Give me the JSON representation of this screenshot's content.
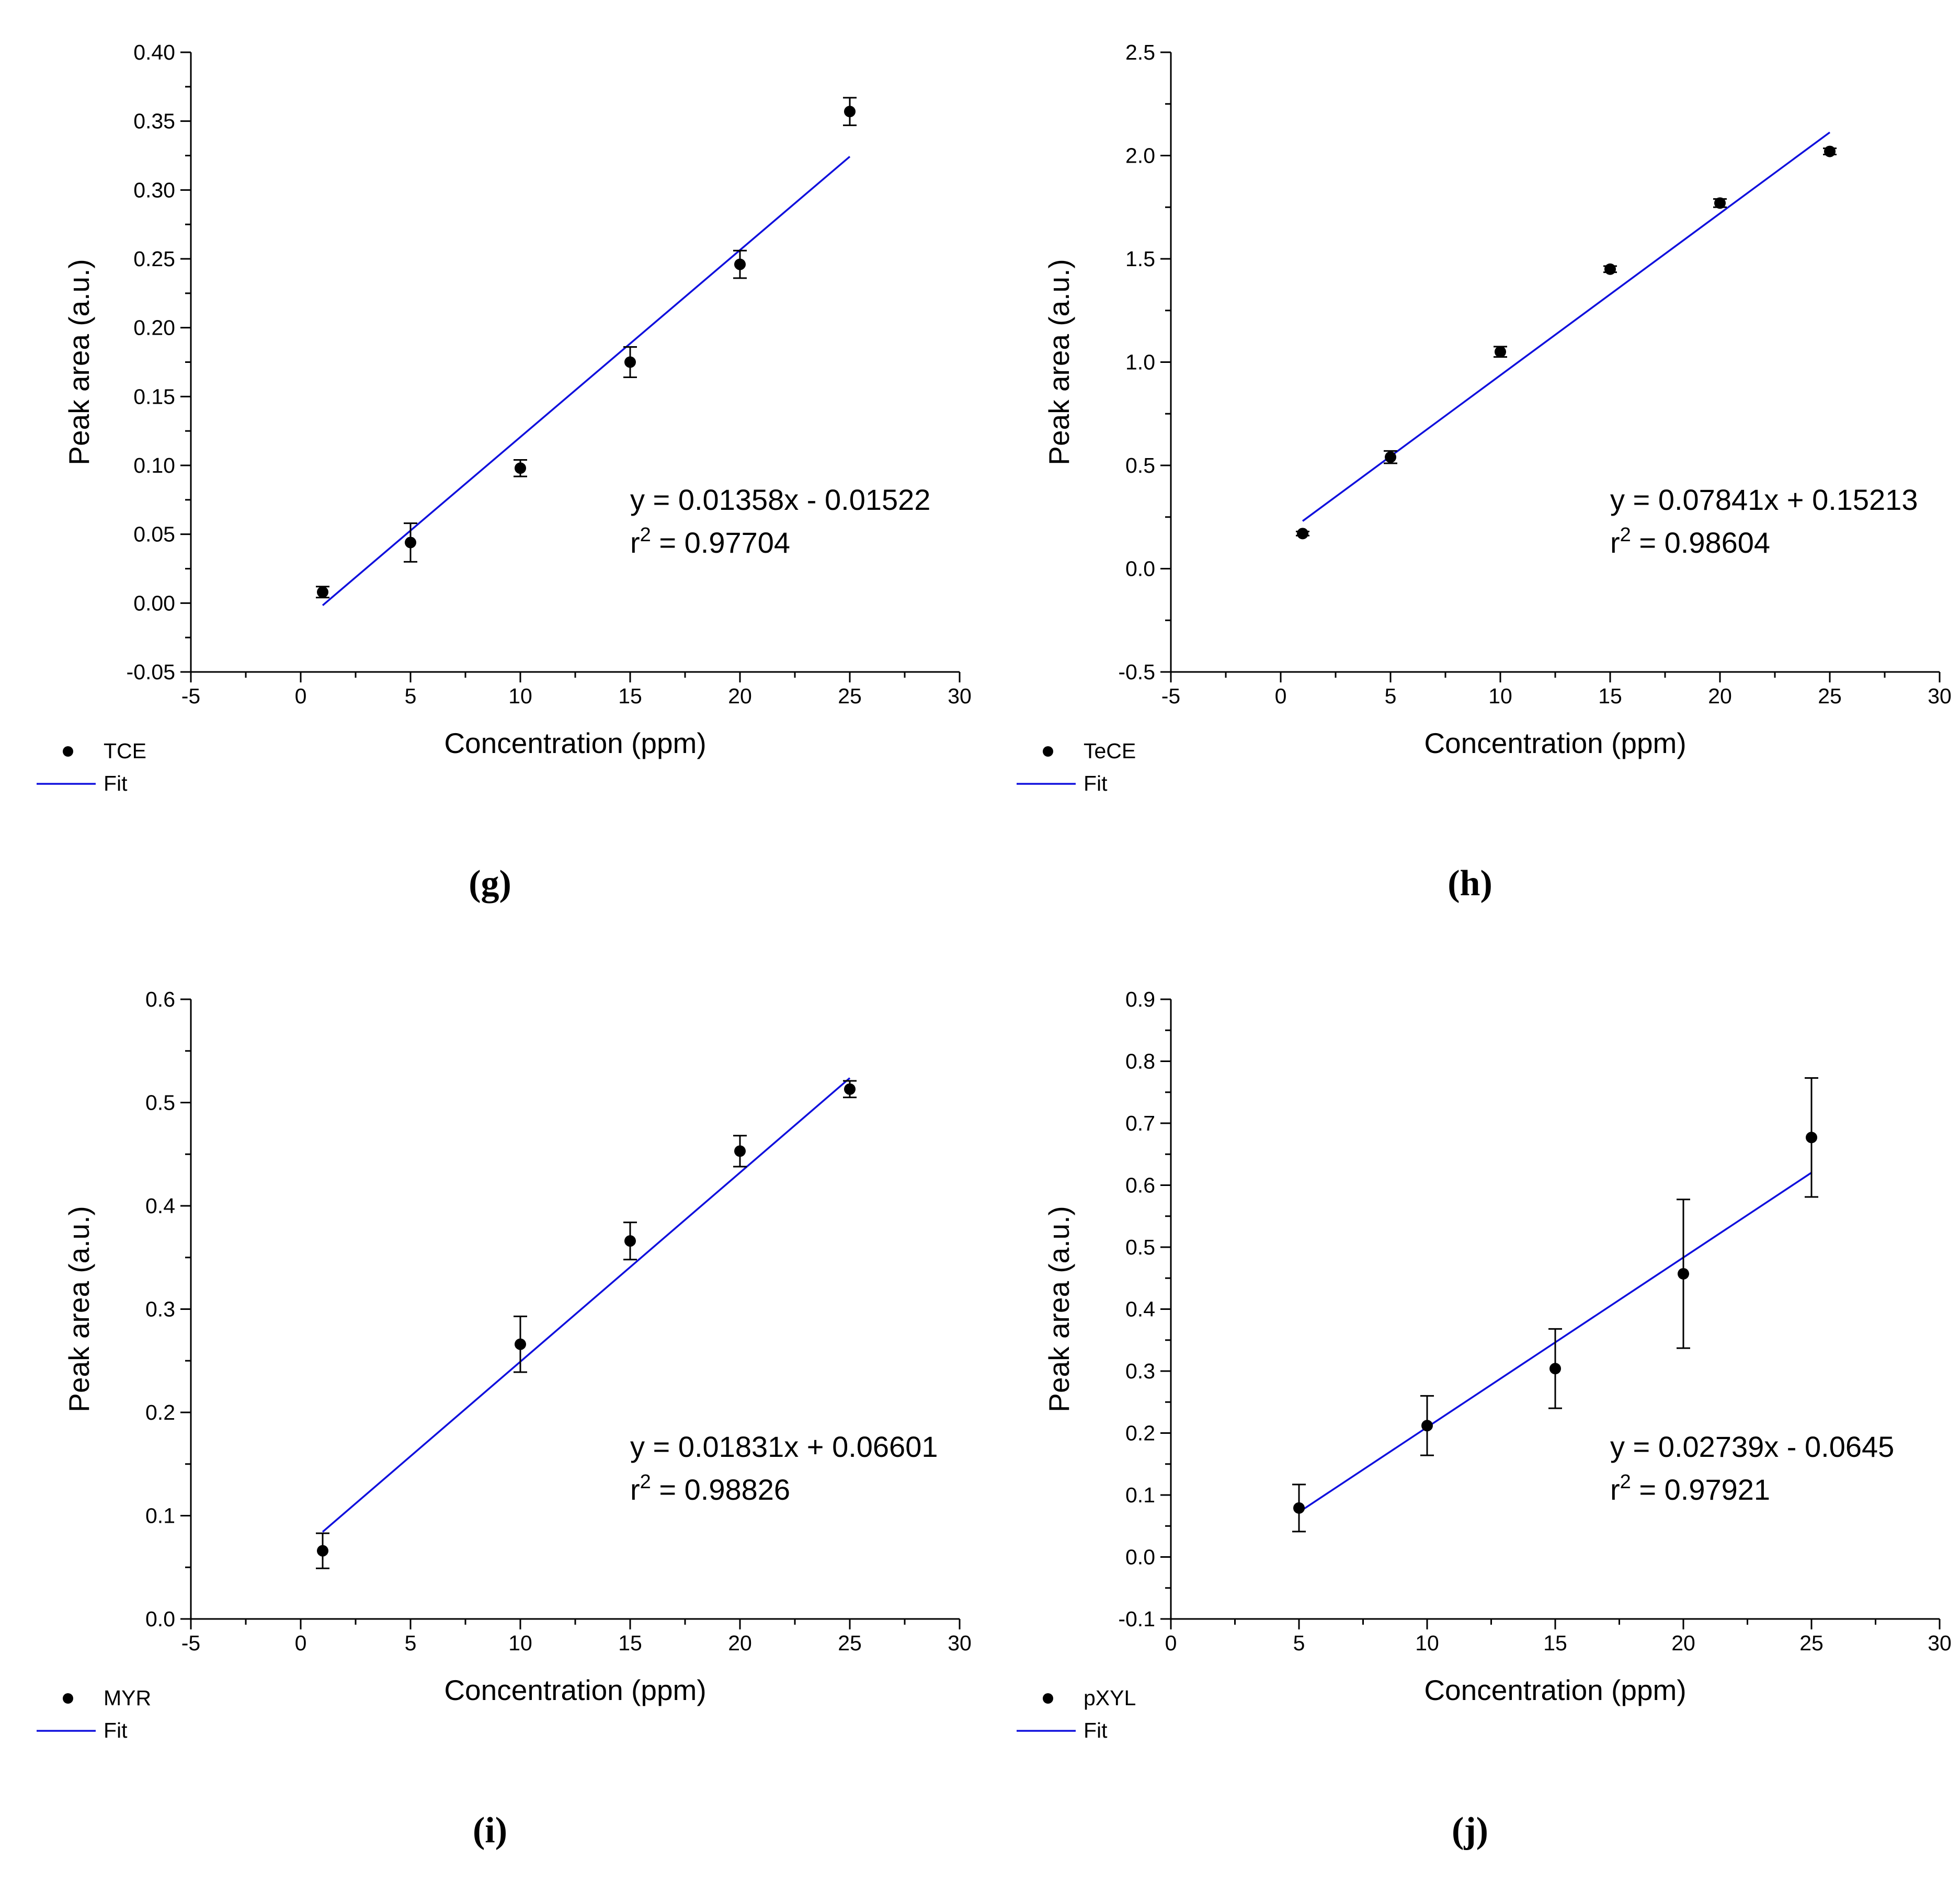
{
  "fit_color": "#1010dd",
  "marker_color": "#000000",
  "chart_data": [
    {
      "type": "scatter",
      "panel_label": "(g)",
      "xlabel": "Concentration (ppm)",
      "ylabel": "Peak area (a.u.)",
      "xlim": [
        -5,
        30
      ],
      "ylim": [
        -0.05,
        0.4
      ],
      "xticks": [
        -5,
        0,
        5,
        10,
        15,
        20,
        25,
        30
      ],
      "xtick_labels": [
        "-5",
        "0",
        "5",
        "10",
        "15",
        "20",
        "25",
        "30"
      ],
      "yticks": [
        -0.05,
        0.0,
        0.05,
        0.1,
        0.15,
        0.2,
        0.25,
        0.3,
        0.35,
        0.4
      ],
      "ytick_labels": [
        "-0.05",
        "0.00",
        "0.05",
        "0.10",
        "0.15",
        "0.20",
        "0.25",
        "0.30",
        "0.35",
        "0.40"
      ],
      "series": [
        {
          "name": "TCE",
          "x": [
            1,
            5,
            10,
            15,
            20,
            25
          ],
          "y": [
            0.008,
            0.044,
            0.098,
            0.175,
            0.246,
            0.357
          ],
          "err": [
            0.004,
            0.014,
            0.006,
            0.011,
            0.01,
            0.01
          ]
        }
      ],
      "fit": {
        "name": "Fit",
        "slope": 0.01358,
        "intercept": -0.01522,
        "x_range": [
          1,
          25
        ]
      },
      "equation": "y = 0.01358x - 0.01522",
      "r2_prefix": "r",
      "r2_sup": "2",
      "r2_value": " = 0.97704"
    },
    {
      "type": "scatter",
      "panel_label": "(h)",
      "xlabel": "Concentration (ppm)",
      "ylabel": "Peak area (a.u.)",
      "xlim": [
        -5,
        30
      ],
      "ylim": [
        -0.5,
        2.5
      ],
      "xticks": [
        -5,
        0,
        5,
        10,
        15,
        20,
        25,
        30
      ],
      "xtick_labels": [
        "-5",
        "0",
        "5",
        "10",
        "15",
        "20",
        "25",
        "30"
      ],
      "yticks": [
        -0.5,
        0.0,
        0.5,
        1.0,
        1.5,
        2.0,
        2.5
      ],
      "ytick_labels": [
        "-0.5",
        "0.0",
        "0.5",
        "1.0",
        "1.5",
        "2.0",
        "2.5"
      ],
      "series": [
        {
          "name": "TeCE",
          "x": [
            1,
            5,
            10,
            15,
            20,
            25
          ],
          "y": [
            0.17,
            0.54,
            1.05,
            1.45,
            1.77,
            2.02
          ],
          "err": [
            0.01,
            0.03,
            0.025,
            0.015,
            0.02,
            0.015
          ]
        }
      ],
      "fit": {
        "name": "Fit",
        "slope": 0.07841,
        "intercept": 0.15213,
        "x_range": [
          1,
          25
        ]
      },
      "equation": "y = 0.07841x + 0.15213",
      "r2_prefix": "r",
      "r2_sup": "2",
      "r2_value": " = 0.98604"
    },
    {
      "type": "scatter",
      "panel_label": "(i)",
      "xlabel": "Concentration (ppm)",
      "ylabel": "Peak area (a.u.)",
      "xlim": [
        -5,
        30
      ],
      "ylim": [
        0.0,
        0.6
      ],
      "xticks": [
        -5,
        0,
        5,
        10,
        15,
        20,
        25,
        30
      ],
      "xtick_labels": [
        "-5",
        "0",
        "5",
        "10",
        "15",
        "20",
        "25",
        "30"
      ],
      "yticks": [
        0.0,
        0.1,
        0.2,
        0.3,
        0.4,
        0.5,
        0.6
      ],
      "ytick_labels": [
        "0.0",
        "0.1",
        "0.2",
        "0.3",
        "0.4",
        "0.5",
        "0.6"
      ],
      "series": [
        {
          "name": "MYR",
          "x": [
            1,
            10,
            15,
            20,
            25
          ],
          "y": [
            0.066,
            0.266,
            0.366,
            0.453,
            0.513
          ],
          "err": [
            0.017,
            0.027,
            0.018,
            0.015,
            0.008
          ]
        }
      ],
      "fit": {
        "name": "Fit",
        "slope": 0.01831,
        "intercept": 0.06601,
        "x_range": [
          1,
          25
        ]
      },
      "equation": "y = 0.01831x + 0.06601",
      "r2_prefix": "r",
      "r2_sup": "2",
      "r2_value": " = 0.98826"
    },
    {
      "type": "scatter",
      "panel_label": "(j)",
      "xlabel": "Concentration (ppm)",
      "ylabel": "Peak area (a.u.)",
      "xlim": [
        0,
        30
      ],
      "ylim": [
        -0.1,
        0.9
      ],
      "xticks": [
        0,
        5,
        10,
        15,
        20,
        25,
        30
      ],
      "xtick_labels": [
        "0",
        "5",
        "10",
        "15",
        "20",
        "25",
        "30"
      ],
      "yticks": [
        -0.1,
        0.0,
        0.1,
        0.2,
        0.3,
        0.4,
        0.5,
        0.6,
        0.7,
        0.8,
        0.9
      ],
      "ytick_labels": [
        "-0.1",
        "0.0",
        "0.1",
        "0.2",
        "0.3",
        "0.4",
        "0.5",
        "0.6",
        "0.7",
        "0.8",
        "0.9"
      ],
      "series": [
        {
          "name": "pXYL",
          "x": [
            5,
            10,
            15,
            20,
            25
          ],
          "y": [
            0.079,
            0.212,
            0.304,
            0.457,
            0.677
          ],
          "err": [
            0.038,
            0.048,
            0.064,
            0.12,
            0.096
          ]
        }
      ],
      "fit": {
        "name": "Fit",
        "slope": 0.02739,
        "intercept": -0.0645,
        "x_range": [
          5,
          25
        ]
      },
      "equation": "y = 0.02739x - 0.0645",
      "r2_prefix": "r",
      "r2_sup": "2",
      "r2_value": " = 0.97921"
    }
  ]
}
